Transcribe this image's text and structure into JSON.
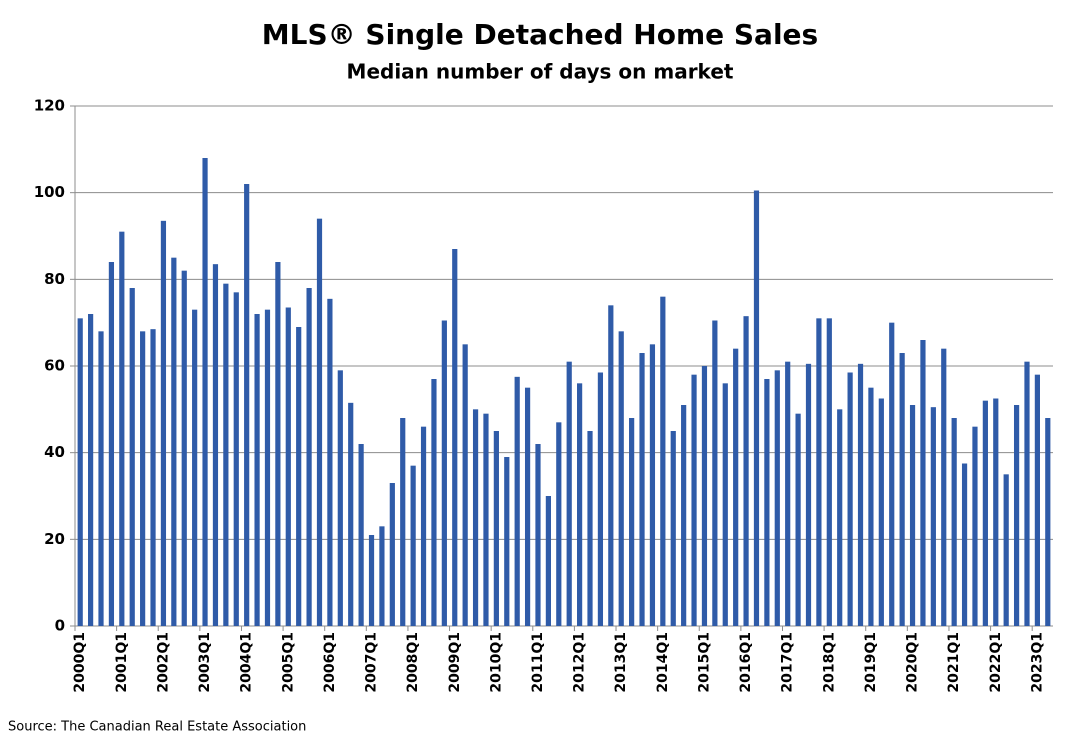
{
  "chart_data": {
    "type": "bar",
    "title": "MLS® Single Detached Home Sales",
    "subtitle": "Median number of days on market",
    "source": "Source: The Canadian Real Estate Association",
    "categories": [
      "2000Q1",
      null,
      null,
      null,
      "2001Q1",
      null,
      null,
      null,
      "2002Q1",
      null,
      null,
      null,
      "2003Q1",
      null,
      null,
      null,
      "2004Q1",
      null,
      null,
      null,
      "2005Q1",
      null,
      null,
      null,
      "2006Q1",
      null,
      null,
      null,
      "2007Q1",
      null,
      null,
      null,
      "2008Q1",
      null,
      null,
      null,
      "2009Q1",
      null,
      null,
      null,
      "2010Q1",
      null,
      null,
      null,
      "2011Q1",
      null,
      null,
      null,
      "2012Q1",
      null,
      null,
      null,
      "2013Q1",
      null,
      null,
      null,
      "2014Q1",
      null,
      null,
      null,
      "2015Q1",
      null,
      null,
      null,
      "2016Q1",
      null,
      null,
      null,
      "2017Q1",
      null,
      null,
      null,
      "2018Q1",
      null,
      null,
      null,
      "2019Q1",
      null,
      null,
      null,
      "2020Q1",
      null,
      null,
      null,
      "2021Q1",
      null,
      null,
      null,
      "2022Q1",
      null,
      null,
      null,
      "2023Q1",
      null
    ],
    "values": [
      71,
      72,
      68,
      84,
      91,
      78,
      68,
      68.5,
      93.5,
      85,
      82,
      73,
      108,
      83.5,
      79,
      77,
      102,
      72,
      73,
      84,
      73.5,
      69,
      78,
      94,
      75.5,
      59,
      51.5,
      42,
      21,
      23,
      33,
      48,
      37,
      46,
      57,
      70.5,
      87,
      65,
      50,
      49,
      45,
      39,
      57.5,
      55,
      42,
      30,
      47,
      61,
      56,
      45,
      58.5,
      74,
      68,
      48,
      63,
      65,
      76,
      45,
      51,
      58,
      60,
      70.5,
      56,
      64,
      71.5,
      100.5,
      57,
      59,
      61,
      49,
      60.5,
      71,
      71,
      50,
      58.5,
      60.5,
      55,
      52.5,
      70,
      63,
      51,
      66,
      50.5,
      64,
      48,
      37.5,
      46,
      52,
      52.5,
      35,
      51,
      61,
      58,
      48
    ],
    "color": "#2f5ba8",
    "ylim": [
      0,
      120
    ],
    "yticks": [
      0,
      20,
      40,
      60,
      80,
      100,
      120
    ],
    "grid": true
  }
}
